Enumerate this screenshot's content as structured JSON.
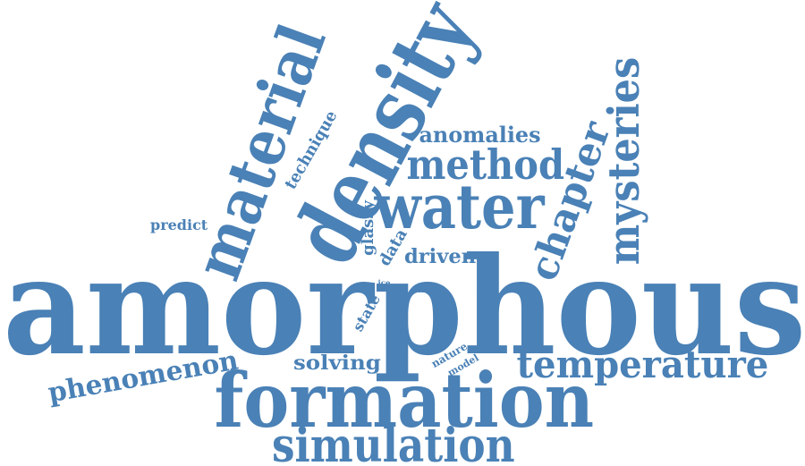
{
  "word_cloud": {
    "color": "#4a81b6",
    "words": [
      {
        "text": "amorphous",
        "orientation": "horizontal"
      },
      {
        "text": "formation",
        "orientation": "horizontal"
      },
      {
        "text": "density",
        "orientation": "rotated"
      },
      {
        "text": "material",
        "orientation": "rotated"
      },
      {
        "text": "water",
        "orientation": "horizontal"
      },
      {
        "text": "simulation",
        "orientation": "horizontal"
      },
      {
        "text": "temperature",
        "orientation": "horizontal"
      },
      {
        "text": "mysteries",
        "orientation": "vertical"
      },
      {
        "text": "chapter",
        "orientation": "rotated"
      },
      {
        "text": "method",
        "orientation": "horizontal"
      },
      {
        "text": "phenomenon",
        "orientation": "rotated"
      },
      {
        "text": "anomalies",
        "orientation": "horizontal"
      },
      {
        "text": "solving",
        "orientation": "horizontal"
      },
      {
        "text": "driven",
        "orientation": "horizontal"
      },
      {
        "text": "technique",
        "orientation": "rotated"
      },
      {
        "text": "glassy",
        "orientation": "vertical"
      },
      {
        "text": "predict",
        "orientation": "horizontal"
      },
      {
        "text": "data",
        "orientation": "rotated"
      },
      {
        "text": "state",
        "orientation": "rotated"
      },
      {
        "text": "nature",
        "orientation": "rotated"
      },
      {
        "text": "model",
        "orientation": "rotated"
      },
      {
        "text": "form",
        "orientation": "horizontal"
      },
      {
        "text": "true",
        "orientation": "horizontal"
      },
      {
        "text": "ice",
        "orientation": "horizontal"
      }
    ]
  }
}
